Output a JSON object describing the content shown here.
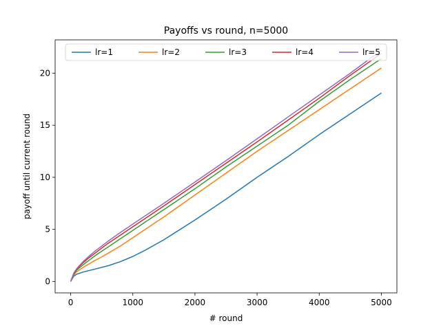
{
  "chart_data": {
    "type": "line",
    "title": "Payoffs vs round, n=5000",
    "xlabel": "# round",
    "ylabel": "payoff until current round",
    "xlim": [
      -250,
      5250
    ],
    "ylim": [
      -1.1,
      23.2
    ],
    "xticks": [
      0,
      1000,
      2000,
      3000,
      4000,
      5000
    ],
    "yticks": [
      0,
      5,
      10,
      15,
      20
    ],
    "grid": false,
    "legend_position": "top",
    "series": [
      {
        "name": "lr=1",
        "color": "#1f77b4",
        "x": [
          0,
          50,
          100,
          200,
          300,
          400,
          500,
          600,
          800,
          1000,
          1200,
          1500,
          2000,
          2500,
          3000,
          3500,
          4000,
          4500,
          5000
        ],
        "y": [
          0,
          0.5,
          0.7,
          0.9,
          1.05,
          1.2,
          1.35,
          1.5,
          1.9,
          2.4,
          3.0,
          4.0,
          5.9,
          7.9,
          10.0,
          12.0,
          14.1,
          16.1,
          18.1
        ]
      },
      {
        "name": "lr=2",
        "color": "#ff7f0e",
        "x": [
          0,
          50,
          100,
          200,
          300,
          400,
          500,
          600,
          800,
          1000,
          1200,
          1500,
          2000,
          2500,
          3000,
          3500,
          4000,
          4500,
          5000
        ],
        "y": [
          0,
          0.6,
          0.95,
          1.35,
          1.7,
          2.05,
          2.35,
          2.7,
          3.4,
          4.2,
          5.0,
          6.2,
          8.3,
          10.4,
          12.5,
          14.5,
          16.5,
          18.5,
          20.5
        ]
      },
      {
        "name": "lr=3",
        "color": "#2ca02c",
        "x": [
          0,
          50,
          100,
          200,
          300,
          400,
          500,
          600,
          800,
          1000,
          1200,
          1500,
          2000,
          2500,
          3000,
          3500,
          4000,
          4500,
          5000
        ],
        "y": [
          0,
          0.7,
          1.1,
          1.6,
          2.05,
          2.5,
          2.9,
          3.3,
          4.1,
          4.9,
          5.7,
          6.9,
          8.9,
          11.0,
          13.0,
          15.0,
          17.3,
          19.4,
          21.4
        ]
      },
      {
        "name": "lr=4",
        "color": "#d62728",
        "x": [
          0,
          50,
          100,
          200,
          300,
          400,
          500,
          600,
          800,
          1000,
          1200,
          1500,
          2000,
          2500,
          3000,
          3500,
          4000,
          4500,
          5000
        ],
        "y": [
          0,
          0.75,
          1.2,
          1.8,
          2.3,
          2.75,
          3.2,
          3.65,
          4.45,
          5.25,
          6.05,
          7.25,
          9.3,
          11.35,
          13.4,
          15.5,
          17.6,
          19.8,
          21.9
        ]
      },
      {
        "name": "lr=5",
        "color": "#9467bd",
        "x": [
          0,
          50,
          100,
          200,
          300,
          400,
          500,
          600,
          800,
          1000,
          1200,
          1500,
          2000,
          2500,
          3000,
          3500,
          4000,
          4500,
          5000
        ],
        "y": [
          0,
          0.8,
          1.25,
          1.9,
          2.45,
          2.95,
          3.4,
          3.85,
          4.7,
          5.5,
          6.3,
          7.5,
          9.55,
          11.6,
          13.7,
          15.8,
          17.9,
          20.0,
          22.2
        ]
      }
    ]
  }
}
